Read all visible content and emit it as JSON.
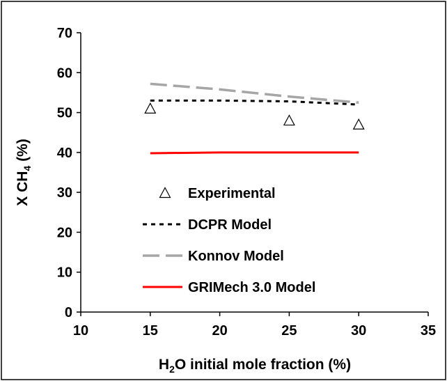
{
  "chart_data": {
    "type": "line",
    "xlabel": {
      "pre": "H",
      "sub": "2",
      "post": "O initial mole fraction (%)"
    },
    "ylabel": {
      "pre": "X CH",
      "sub": "4",
      "post": " (%)"
    },
    "xlim": [
      10,
      35
    ],
    "ylim": [
      0,
      70
    ],
    "xticks": [
      10,
      15,
      20,
      25,
      30,
      35
    ],
    "yticks": [
      0,
      10,
      20,
      30,
      40,
      50,
      60,
      70
    ],
    "grid": false,
    "legend_position": "bottom-center inside plot",
    "series": [
      {
        "name": "Experimental",
        "style": "triangle-markers",
        "color": "#000000",
        "x": [
          15,
          25,
          30
        ],
        "y": [
          51,
          48,
          47
        ]
      },
      {
        "name": "DCPR Model",
        "style": "dotted-line",
        "color": "#000000",
        "x": [
          15,
          20,
          25,
          30
        ],
        "y": [
          53,
          53,
          52.8,
          52
        ]
      },
      {
        "name": "Konnov Model",
        "style": "dashed-line",
        "color": "#a6a6a6",
        "x": [
          15,
          20,
          25,
          30
        ],
        "y": [
          57.2,
          55.8,
          54,
          52.5
        ]
      },
      {
        "name": "GRIMech 3.0 Model",
        "style": "solid-line",
        "color": "#ff0000",
        "x": [
          15,
          20,
          25,
          30
        ],
        "y": [
          39.8,
          40,
          40,
          40
        ]
      }
    ]
  }
}
